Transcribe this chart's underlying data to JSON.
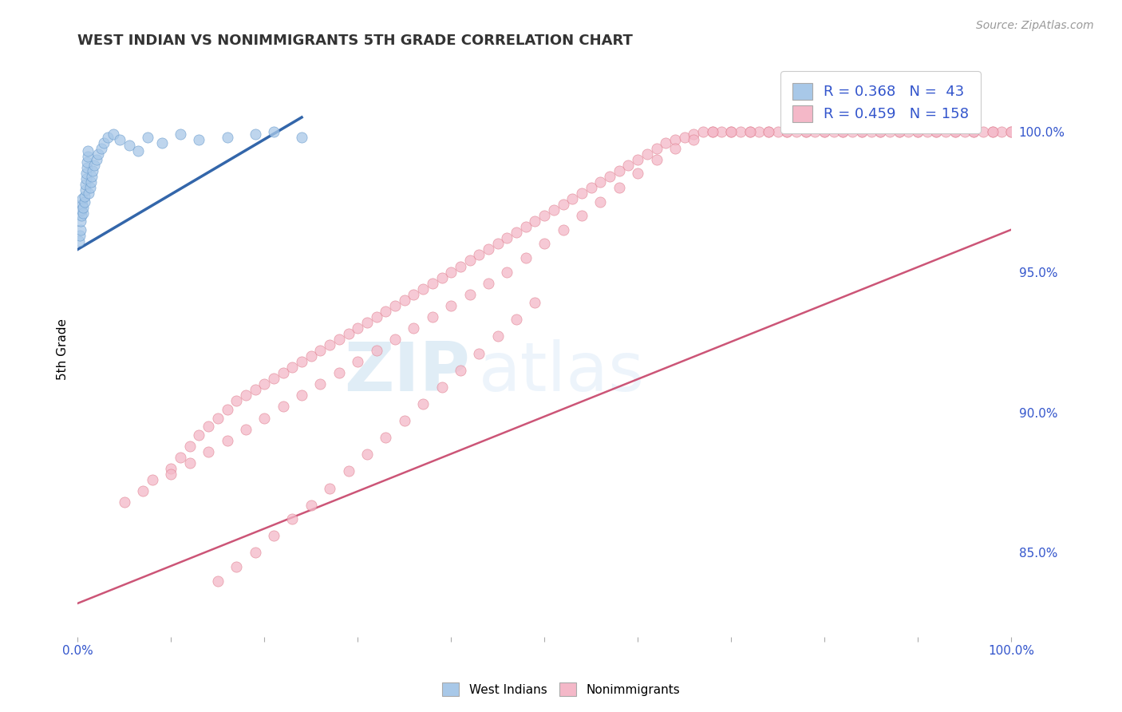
{
  "title": "WEST INDIAN VS NONIMMIGRANTS 5TH GRADE CORRELATION CHART",
  "source": "Source: ZipAtlas.com",
  "ylabel": "5th Grade",
  "right_yticks": [
    0.85,
    0.9,
    0.95,
    1.0
  ],
  "right_ytick_labels": [
    "85.0%",
    "90.0%",
    "95.0%",
    "100.0%"
  ],
  "legend_R_blue": "0.368",
  "legend_N_blue": "43",
  "legend_R_pink": "0.459",
  "legend_N_pink": "158",
  "blue_color": "#a8c8e8",
  "blue_edge_color": "#6699cc",
  "blue_line_color": "#3366aa",
  "pink_color": "#f4b8c8",
  "pink_edge_color": "#e08090",
  "pink_line_color": "#cc5577",
  "text_color": "#3355cc",
  "watermark_zip": "ZIP",
  "watermark_atlas": "atlas",
  "west_indian_x": [
    0.001,
    0.002,
    0.003,
    0.003,
    0.004,
    0.004,
    0.005,
    0.005,
    0.006,
    0.006,
    0.007,
    0.007,
    0.008,
    0.008,
    0.009,
    0.009,
    0.01,
    0.01,
    0.011,
    0.011,
    0.012,
    0.013,
    0.014,
    0.015,
    0.016,
    0.018,
    0.02,
    0.022,
    0.025,
    0.028,
    0.032,
    0.038,
    0.045,
    0.055,
    0.065,
    0.075,
    0.09,
    0.11,
    0.13,
    0.16,
    0.19,
    0.21,
    0.24
  ],
  "west_indian_y": [
    0.961,
    0.963,
    0.965,
    0.968,
    0.97,
    0.972,
    0.974,
    0.976,
    0.971,
    0.973,
    0.975,
    0.977,
    0.979,
    0.981,
    0.983,
    0.985,
    0.987,
    0.989,
    0.991,
    0.993,
    0.978,
    0.98,
    0.982,
    0.984,
    0.986,
    0.988,
    0.99,
    0.992,
    0.994,
    0.996,
    0.998,
    0.999,
    0.997,
    0.995,
    0.993,
    0.998,
    0.996,
    0.999,
    0.997,
    0.998,
    0.999,
    1.0,
    0.998
  ],
  "blue_line_x": [
    0.0,
    0.24
  ],
  "blue_line_y": [
    0.958,
    1.005
  ],
  "nonimmigrant_x": [
    0.05,
    0.07,
    0.08,
    0.1,
    0.11,
    0.12,
    0.13,
    0.14,
    0.15,
    0.16,
    0.17,
    0.18,
    0.19,
    0.2,
    0.21,
    0.22,
    0.23,
    0.24,
    0.25,
    0.26,
    0.27,
    0.28,
    0.29,
    0.3,
    0.31,
    0.32,
    0.33,
    0.34,
    0.35,
    0.36,
    0.37,
    0.38,
    0.39,
    0.4,
    0.41,
    0.42,
    0.43,
    0.44,
    0.45,
    0.46,
    0.47,
    0.48,
    0.49,
    0.5,
    0.51,
    0.52,
    0.53,
    0.54,
    0.55,
    0.56,
    0.57,
    0.58,
    0.59,
    0.6,
    0.61,
    0.62,
    0.63,
    0.64,
    0.65,
    0.66,
    0.67,
    0.68,
    0.69,
    0.7,
    0.71,
    0.72,
    0.73,
    0.74,
    0.75,
    0.76,
    0.77,
    0.78,
    0.79,
    0.8,
    0.81,
    0.82,
    0.83,
    0.84,
    0.85,
    0.86,
    0.87,
    0.88,
    0.89,
    0.9,
    0.91,
    0.92,
    0.93,
    0.94,
    0.95,
    0.96,
    0.97,
    0.98,
    0.99,
    1.0,
    0.1,
    0.12,
    0.14,
    0.16,
    0.18,
    0.2,
    0.22,
    0.24,
    0.26,
    0.28,
    0.3,
    0.32,
    0.34,
    0.36,
    0.38,
    0.4,
    0.42,
    0.44,
    0.46,
    0.48,
    0.5,
    0.52,
    0.54,
    0.56,
    0.58,
    0.6,
    0.62,
    0.64,
    0.66,
    0.68,
    0.7,
    0.72,
    0.74,
    0.76,
    0.78,
    0.8,
    0.82,
    0.84,
    0.86,
    0.88,
    0.9,
    0.92,
    0.94,
    0.96,
    0.98,
    1.0,
    0.15,
    0.17,
    0.19,
    0.21,
    0.23,
    0.25,
    0.27,
    0.29,
    0.31,
    0.33,
    0.35,
    0.37,
    0.39,
    0.41,
    0.43,
    0.45,
    0.47,
    0.49
  ],
  "nonimmigrant_y": [
    0.868,
    0.872,
    0.876,
    0.88,
    0.884,
    0.888,
    0.892,
    0.895,
    0.898,
    0.901,
    0.904,
    0.906,
    0.908,
    0.91,
    0.912,
    0.914,
    0.916,
    0.918,
    0.92,
    0.922,
    0.924,
    0.926,
    0.928,
    0.93,
    0.932,
    0.934,
    0.936,
    0.938,
    0.94,
    0.942,
    0.944,
    0.946,
    0.948,
    0.95,
    0.952,
    0.954,
    0.956,
    0.958,
    0.96,
    0.962,
    0.964,
    0.966,
    0.968,
    0.97,
    0.972,
    0.974,
    0.976,
    0.978,
    0.98,
    0.982,
    0.984,
    0.986,
    0.988,
    0.99,
    0.992,
    0.994,
    0.996,
    0.997,
    0.998,
    0.999,
    1.0,
    1.0,
    1.0,
    1.0,
    1.0,
    1.0,
    1.0,
    1.0,
    1.0,
    1.0,
    1.0,
    1.0,
    1.0,
    1.0,
    1.0,
    1.0,
    1.0,
    1.0,
    1.0,
    1.0,
    1.0,
    1.0,
    1.0,
    1.0,
    1.0,
    1.0,
    1.0,
    1.0,
    1.0,
    1.0,
    1.0,
    1.0,
    1.0,
    1.0,
    0.878,
    0.882,
    0.886,
    0.89,
    0.894,
    0.898,
    0.902,
    0.906,
    0.91,
    0.914,
    0.918,
    0.922,
    0.926,
    0.93,
    0.934,
    0.938,
    0.942,
    0.946,
    0.95,
    0.955,
    0.96,
    0.965,
    0.97,
    0.975,
    0.98,
    0.985,
    0.99,
    0.994,
    0.997,
    1.0,
    1.0,
    1.0,
    1.0,
    1.0,
    1.0,
    1.0,
    1.0,
    1.0,
    1.0,
    1.0,
    1.0,
    1.0,
    1.0,
    1.0,
    1.0,
    1.0,
    0.84,
    0.845,
    0.85,
    0.856,
    0.862,
    0.867,
    0.873,
    0.879,
    0.885,
    0.891,
    0.897,
    0.903,
    0.909,
    0.915,
    0.921,
    0.927,
    0.933,
    0.939
  ],
  "pink_line_x": [
    0.0,
    1.0
  ],
  "pink_line_y": [
    0.832,
    0.965
  ],
  "ylim": [
    0.82,
    1.025
  ],
  "xlim": [
    0.0,
    1.0
  ],
  "grid_color": "#cccccc",
  "background_color": "#ffffff"
}
